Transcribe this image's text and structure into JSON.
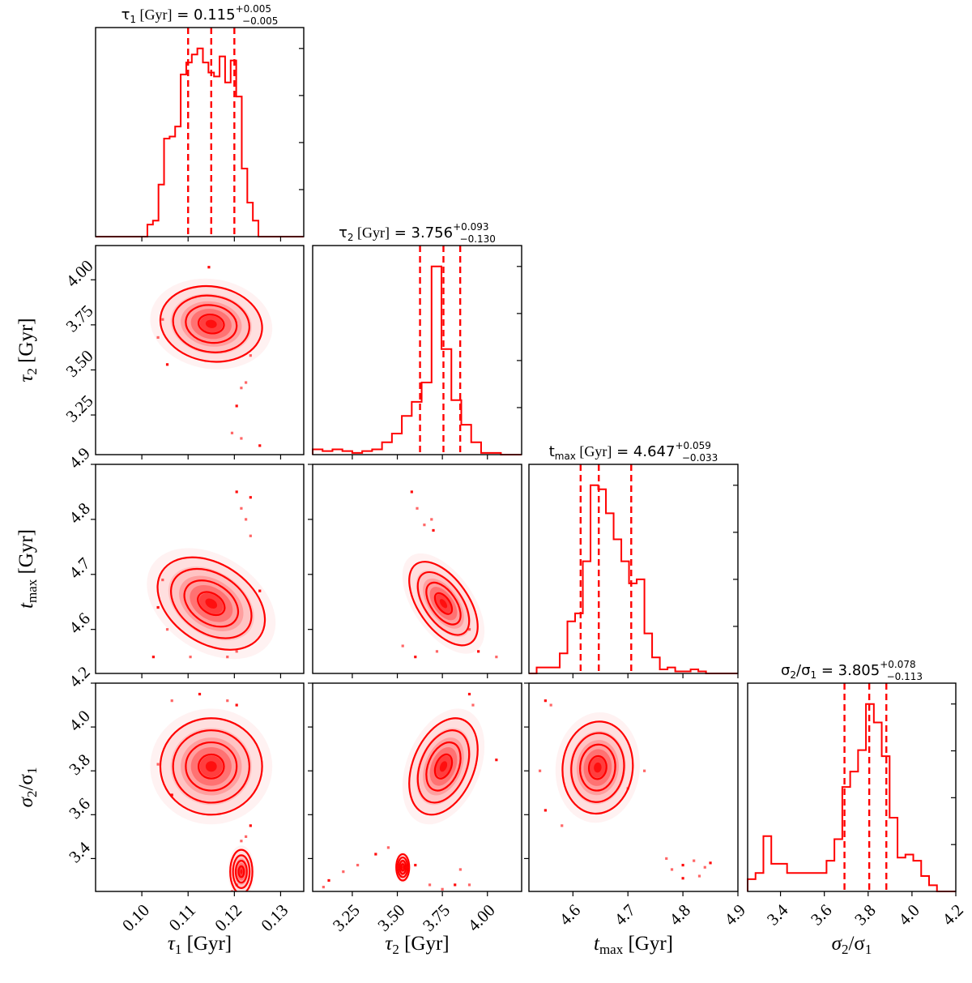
{
  "chart_data": {
    "type": "corner",
    "color": "#ff0000",
    "parameters": [
      {
        "key": "tau1",
        "label": "τ₁  [Gyr]",
        "symbol": "τ",
        "sub": "1",
        "unit": "[Gyr]",
        "range": [
          0.09,
          0.135
        ],
        "ticks": [
          0.1,
          0.11,
          0.12,
          0.13
        ],
        "tick_labels": [
          "0.10",
          "0.11",
          "0.12",
          "0.13"
        ],
        "median": 0.115,
        "plus": 0.005,
        "minus": 0.005,
        "q16": 0.11,
        "q84": 0.12,
        "title": "τ₁  [Gyr] = 0.115 +0.005 −0.005",
        "hist_edges": [
          0.09,
          0.1012,
          0.1024,
          0.1036,
          0.1048,
          0.106,
          0.1072,
          0.1084,
          0.1096,
          0.1108,
          0.112,
          0.1132,
          0.1144,
          0.1156,
          0.1168,
          0.118,
          0.1192,
          0.1204,
          0.1216,
          0.1228,
          0.124,
          0.1252,
          0.1264,
          0.135
        ],
        "hist_counts": [
          0,
          6,
          8,
          26,
          49,
          50,
          55,
          81,
          87,
          91,
          94,
          87,
          82,
          80,
          90,
          77,
          88,
          70,
          34,
          17,
          8,
          0,
          0
        ]
      },
      {
        "key": "tau2",
        "label": "τ₂  [Gyr]",
        "symbol": "τ",
        "sub": "2",
        "unit": "[Gyr]",
        "range": [
          3.03,
          4.19
        ],
        "ticks": [
          3.25,
          3.5,
          3.75,
          4.0
        ],
        "tick_labels": [
          "3.25",
          "3.50",
          "3.75",
          "4.00"
        ],
        "median": 3.756,
        "plus": 0.093,
        "minus": 0.13,
        "q16": 3.626,
        "q84": 3.849,
        "title": "τ₂  [Gyr] = 3.756 +0.093 −0.130",
        "hist_edges": [
          3.03,
          3.085,
          3.14,
          3.195,
          3.25,
          3.305,
          3.36,
          3.415,
          3.47,
          3.525,
          3.58,
          3.635,
          3.69,
          3.745,
          3.8,
          3.855,
          3.91,
          3.965,
          4.02,
          4.075,
          4.19
        ],
        "hist_counts": [
          3,
          2,
          3,
          2,
          1,
          2,
          3,
          7,
          12,
          22,
          30,
          41,
          107,
          60,
          31,
          17,
          7,
          1,
          1,
          0
        ]
      },
      {
        "key": "tmax",
        "label": "t_max  [Gyr]",
        "symbol": "t",
        "sub": "max",
        "unit": "[Gyr]",
        "range": [
          4.52,
          4.9
        ],
        "ticks": [
          4.6,
          4.7,
          4.8,
          4.9
        ],
        "tick_labels": [
          "4.6",
          "4.7",
          "4.8",
          "4.9"
        ],
        "median": 4.647,
        "plus": 0.059,
        "minus": 0.033,
        "q16": 4.614,
        "q84": 4.706,
        "title": "t_max  [Gyr] = 4.647 +0.059 −0.033",
        "hist_edges": [
          4.52,
          4.534,
          4.548,
          4.562,
          4.576,
          4.59,
          4.604,
          4.618,
          4.632,
          4.646,
          4.66,
          4.674,
          4.688,
          4.702,
          4.716,
          4.73,
          4.744,
          4.758,
          4.772,
          4.786,
          4.8,
          4.814,
          4.828,
          4.842,
          4.9
        ],
        "hist_counts": [
          0,
          3,
          3,
          3,
          10,
          26,
          30,
          56,
          94,
          92,
          80,
          67,
          56,
          45,
          47,
          20,
          8,
          2,
          3,
          1,
          1,
          2,
          1,
          0
        ]
      },
      {
        "key": "sigma_ratio",
        "label": "σ₂/σ₁",
        "symbol": "σ",
        "sub": "2",
        "unit": "",
        "range": [
          3.25,
          4.2
        ],
        "ticks": [
          3.4,
          3.6,
          3.8,
          4.0,
          4.2
        ],
        "tick_labels": [
          "3.4",
          "3.6",
          "3.8",
          "4.0",
          "4.2"
        ],
        "median": 3.805,
        "plus": 0.078,
        "minus": 0.113,
        "q16": 3.692,
        "q84": 3.883,
        "title": "σ₂/σ₁ = 3.805 +0.078 −0.113",
        "hist_edges": [
          3.25,
          3.286,
          3.322,
          3.358,
          3.394,
          3.43,
          3.466,
          3.502,
          3.538,
          3.574,
          3.61,
          3.646,
          3.682,
          3.718,
          3.754,
          3.79,
          3.826,
          3.862,
          3.898,
          3.934,
          3.97,
          4.006,
          4.042,
          4.078,
          4.114,
          4.15,
          4.2
        ],
        "hist_counts": [
          4,
          6,
          18,
          9,
          9,
          6,
          6,
          6,
          6,
          6,
          10,
          17,
          34,
          39,
          46,
          61,
          55,
          44,
          24,
          11,
          12,
          10,
          5,
          2,
          0,
          0
        ]
      }
    ],
    "contour_levels": "0.5, 1, 1.5, 2 sigma",
    "panels": [
      "tau1",
      "tau2|tau1",
      "tau2",
      "tmax|tau1",
      "tmax|tau2",
      "tmax",
      "sigma_ratio|tau1",
      "sigma_ratio|tau2",
      "sigma_ratio|tmax",
      "sigma_ratio"
    ],
    "outliers": {
      "tau2|tau1": [
        [
          0.1145,
          4.07
        ],
        [
          0.1215,
          3.4
        ],
        [
          0.1225,
          3.43
        ],
        [
          0.1205,
          3.3
        ],
        [
          0.1195,
          3.15
        ],
        [
          0.1215,
          3.12
        ],
        [
          0.1255,
          3.08
        ],
        [
          0.1045,
          3.78
        ],
        [
          0.1035,
          3.68
        ],
        [
          0.1055,
          3.53
        ],
        [
          0.1235,
          3.58
        ]
      ],
      "tmax|tau1": [
        [
          0.1235,
          4.84
        ],
        [
          0.1225,
          4.8
        ],
        [
          0.1215,
          4.82
        ],
        [
          0.1205,
          4.85
        ],
        [
          0.1235,
          4.77
        ],
        [
          0.1045,
          4.69
        ],
        [
          0.1035,
          4.64
        ],
        [
          0.1055,
          4.6
        ],
        [
          0.1105,
          4.55
        ],
        [
          0.1025,
          4.55
        ],
        [
          0.1185,
          4.55
        ],
        [
          0.1205,
          4.56
        ],
        [
          0.1255,
          4.67
        ]
      ],
      "tmax|tau2": [
        [
          3.58,
          4.85
        ],
        [
          3.61,
          4.82
        ],
        [
          3.65,
          4.79
        ],
        [
          3.7,
          4.78
        ],
        [
          3.69,
          4.8
        ],
        [
          3.9,
          4.6
        ],
        [
          3.95,
          4.56
        ],
        [
          4.05,
          4.55
        ],
        [
          3.53,
          4.57
        ],
        [
          3.6,
          4.55
        ],
        [
          3.72,
          4.56
        ]
      ],
      "sigma_ratio|tau1": [
        [
          0.1125,
          4.15
        ],
        [
          0.1185,
          4.12
        ],
        [
          0.1065,
          4.12
        ],
        [
          0.1205,
          4.1
        ],
        [
          0.1225,
          3.5
        ],
        [
          0.1215,
          3.48
        ],
        [
          0.1235,
          3.55
        ],
        [
          0.1205,
          3.28
        ],
        [
          0.1195,
          3.25
        ],
        [
          0.1065,
          3.69
        ],
        [
          0.1035,
          3.83
        ]
      ],
      "sigma_ratio|tau2": [
        [
          3.9,
          4.15
        ],
        [
          3.92,
          4.1
        ],
        [
          3.09,
          3.27
        ],
        [
          3.12,
          3.3
        ],
        [
          3.2,
          3.34
        ],
        [
          3.28,
          3.37
        ],
        [
          3.38,
          3.42
        ],
        [
          3.45,
          3.45
        ],
        [
          3.52,
          3.32
        ],
        [
          3.6,
          3.37
        ],
        [
          3.68,
          3.28
        ],
        [
          3.75,
          3.26
        ],
        [
          3.82,
          3.28
        ],
        [
          3.85,
          3.35
        ],
        [
          3.9,
          3.28
        ],
        [
          4.05,
          3.85
        ]
      ],
      "sigma_ratio|tmax": [
        [
          4.55,
          4.12
        ],
        [
          4.56,
          4.1
        ],
        [
          4.54,
          3.8
        ],
        [
          4.55,
          3.62
        ],
        [
          4.58,
          3.55
        ],
        [
          4.77,
          3.4
        ],
        [
          4.8,
          3.37
        ],
        [
          4.82,
          3.39
        ],
        [
          4.84,
          3.36
        ],
        [
          4.85,
          3.38
        ],
        [
          4.83,
          3.32
        ],
        [
          4.78,
          3.35
        ],
        [
          4.8,
          3.31
        ],
        [
          4.7,
          3.72
        ],
        [
          4.73,
          3.8
        ]
      ]
    },
    "blobs": {
      "tau2|tau1": [
        [
          0.115,
          3.755,
          0.0055,
          0.105,
          -0.1
        ]
      ],
      "tmax|tau1": [
        [
          0.115,
          4.647,
          0.0058,
          0.042,
          -0.35
        ]
      ],
      "tmax|tau2": [
        [
          3.756,
          4.647,
          0.095,
          0.038,
          -0.55
        ]
      ],
      "sigma_ratio|tau1": [
        [
          0.115,
          3.82,
          0.0055,
          0.11,
          0.0
        ],
        [
          0.1215,
          3.34,
          0.0012,
          0.05,
          0.0
        ]
      ],
      "sigma_ratio|tau2": [
        [
          3.756,
          3.82,
          0.095,
          0.11,
          0.35
        ],
        [
          3.53,
          3.36,
          0.018,
          0.03,
          0.0
        ]
      ],
      "sigma_ratio|tmax": [
        [
          4.645,
          3.815,
          0.032,
          0.105,
          0.05
        ]
      ]
    }
  }
}
